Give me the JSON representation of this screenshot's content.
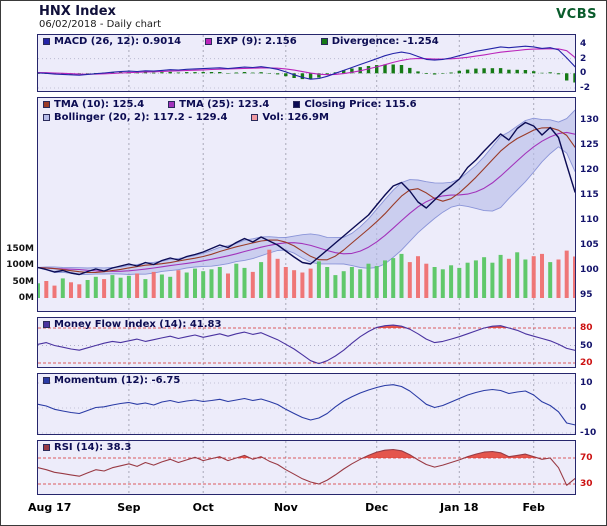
{
  "header": {
    "title": "HNX Index",
    "subtitle": "06/02/2018 - Daily chart",
    "brand": "VCBS"
  },
  "colors": {
    "panel_bg": "#edecfa",
    "grid": "#a9a9b9",
    "band_fill": "#b6bce9",
    "band_edge": "#8a94d8",
    "close_line": "#0b0b54",
    "tma10_line": "#9a3b28",
    "tma25_line": "#a233bb",
    "macd_line": "#2424a8",
    "exp_line": "#ba25ba",
    "divergence_bar": "#167a16",
    "mfi_line": "#4a33a0",
    "momentum_line": "#2a3ba5",
    "rsi_line": "#993a44",
    "vol_up": "#58c663",
    "vol_down": "#ef7070",
    "threshold_red": "#d42a2a",
    "overbought_fill": "#e23b2e",
    "tick_text": "#12126a",
    "tick_red": "#cc1111"
  },
  "legends": {
    "macd": [
      {
        "label": "MACD (26, 12): 0.9014",
        "color": "#2424a8"
      },
      {
        "label": "EXP (9): 2.156",
        "color": "#ba25ba"
      },
      {
        "label": "Divergence: -1.254",
        "color": "#167a16"
      }
    ],
    "price_row1": [
      {
        "label": "TMA (10): 125.4",
        "color": "#9a3b28"
      },
      {
        "label": "TMA (25): 123.4",
        "color": "#a233bb"
      },
      {
        "label": "Closing Price: 115.6",
        "color": "#0b0b54"
      }
    ],
    "price_row2": [
      {
        "label": "Bollinger (20, 2): 117.2 - 129.4",
        "color": "#b6bce9"
      },
      {
        "label": "Vol: 126.9M",
        "color": "#ef9aa2"
      }
    ],
    "mfi": [
      {
        "label": "Money Flow Index (14): 41.83",
        "color": "#4a33a0"
      }
    ],
    "momentum": [
      {
        "label": "Momentum (12): -6.75",
        "color": "#2a3ba5"
      }
    ],
    "rsi": [
      {
        "label": "RSI (14): 38.3",
        "color": "#993a44"
      }
    ]
  },
  "chart_data": {
    "type": "line",
    "title": "HNX Index",
    "subtitle": "06/02/2018 - Daily chart",
    "panels": [
      "MACD",
      "Price with Bollinger bands and volume",
      "Money Flow Index",
      "Momentum",
      "RSI"
    ],
    "n": 66,
    "x_ticks": {
      "labels": [
        "Aug 17",
        "Sep",
        "Oct",
        "Nov",
        "Dec",
        "Jan 18",
        "Feb"
      ],
      "indices": [
        0,
        11,
        20,
        30,
        41,
        51,
        60
      ]
    },
    "y_axes": {
      "macd_ticks": [
        4,
        2,
        0,
        -2
      ],
      "macd_range": [
        -2.55,
        5.23
      ],
      "price_ticks": [
        130,
        125,
        120,
        115,
        110,
        105,
        100,
        95
      ],
      "price_range": [
        91.8,
        134.4
      ],
      "volume_ticks": [
        "150M",
        "100M",
        "50M",
        "0M"
      ],
      "volume_range_millions": [
        0,
        150
      ],
      "mfi_ticks": [
        80,
        50,
        20
      ],
      "mfi_thresholds": [
        80,
        20
      ],
      "momentum_ticks": [
        10,
        0,
        -10
      ],
      "rsi_ticks": [
        70,
        30
      ],
      "rsi_thresholds": [
        70,
        30
      ]
    },
    "last_values": {
      "macd": 0.9014,
      "exp9": 2.156,
      "divergence": -1.254,
      "tma10": 125.4,
      "tma25": 123.4,
      "close": 115.6,
      "bollinger": "117.2 - 129.4",
      "volume": "126.9M",
      "mfi": 41.83,
      "momentum": -6.75,
      "rsi": 38.3
    },
    "series": {
      "close": [
        100.5,
        100.1,
        99.6,
        99.9,
        99.4,
        99.1,
        99.7,
        100.2,
        99.8,
        100.4,
        100.8,
        101.2,
        100.8,
        101.5,
        101.1,
        101.9,
        102.4,
        102.0,
        102.7,
        103.1,
        103.6,
        104.3,
        105.0,
        104.5,
        105.5,
        106.3,
        105.6,
        106.6,
        105.8,
        105.0,
        103.8,
        102.6,
        101.5,
        101.2,
        102.6,
        104.0,
        105.4,
        106.8,
        108.2,
        109.6,
        111.0,
        113.0,
        115.0,
        116.8,
        117.5,
        115.8,
        113.6,
        112.4,
        114.0,
        115.6,
        116.8,
        118.2,
        120.5,
        122.0,
        123.8,
        125.5,
        127.2,
        126.0,
        128.3,
        129.5,
        128.8,
        127.0,
        128.5,
        126.5,
        121.0,
        115.6
      ],
      "volume_millions": [
        45,
        52,
        38,
        60,
        48,
        42,
        55,
        65,
        58,
        70,
        62,
        68,
        75,
        58,
        80,
        72,
        65,
        85,
        78,
        90,
        82,
        88,
        95,
        75,
        105,
        92,
        80,
        110,
        148,
        120,
        95,
        85,
        78,
        90,
        112,
        95,
        70,
        82,
        95,
        88,
        105,
        98,
        115,
        122,
        135,
        110,
        128,
        105,
        95,
        88,
        100,
        92,
        108,
        115,
        125,
        108,
        132,
        120,
        140,
        118,
        128,
        135,
        110,
        118,
        145,
        126.9
      ],
      "macd": [
        0.05,
        0.0,
        -0.1,
        -0.15,
        -0.2,
        -0.25,
        -0.15,
        -0.05,
        0.05,
        0.15,
        0.25,
        0.3,
        0.25,
        0.35,
        0.3,
        0.4,
        0.5,
        0.45,
        0.55,
        0.6,
        0.65,
        0.7,
        0.75,
        0.65,
        0.75,
        0.85,
        0.8,
        0.9,
        0.75,
        0.55,
        0.2,
        -0.2,
        -0.55,
        -0.8,
        -0.7,
        -0.4,
        0.0,
        0.4,
        0.8,
        1.2,
        1.6,
        2.0,
        2.4,
        2.7,
        2.9,
        2.7,
        2.3,
        1.9,
        1.8,
        1.9,
        2.1,
        2.4,
        2.7,
        3.0,
        3.2,
        3.4,
        3.6,
        3.5,
        3.6,
        3.7,
        3.6,
        3.4,
        3.5,
        3.2,
        2.1,
        0.9
      ],
      "macd_signal": [
        0.1,
        0.08,
        0.04,
        0.0,
        -0.05,
        -0.1,
        -0.12,
        -0.1,
        -0.07,
        -0.02,
        0.04,
        0.1,
        0.14,
        0.18,
        0.21,
        0.25,
        0.3,
        0.34,
        0.38,
        0.43,
        0.47,
        0.52,
        0.57,
        0.6,
        0.63,
        0.67,
        0.7,
        0.74,
        0.74,
        0.7,
        0.6,
        0.44,
        0.24,
        0.03,
        -0.12,
        -0.18,
        -0.14,
        -0.03,
        0.14,
        0.35,
        0.6,
        0.88,
        1.18,
        1.49,
        1.77,
        1.96,
        2.03,
        2.0,
        1.96,
        1.95,
        1.98,
        2.06,
        2.19,
        2.35,
        2.52,
        2.7,
        2.88,
        3.0,
        3.12,
        3.24,
        3.31,
        3.33,
        3.36,
        3.33,
        3.08,
        2.16
      ],
      "money_flow_index": [
        52,
        55,
        50,
        47,
        44,
        42,
        46,
        50,
        54,
        57,
        55,
        58,
        61,
        57,
        60,
        63,
        66,
        62,
        65,
        68,
        64,
        67,
        70,
        66,
        70,
        73,
        69,
        72,
        66,
        60,
        52,
        44,
        34,
        24,
        19,
        24,
        32,
        42,
        54,
        65,
        74,
        81,
        84,
        85,
        83,
        78,
        70,
        61,
        55,
        57,
        61,
        65,
        70,
        75,
        80,
        83,
        84,
        80,
        76,
        70,
        66,
        62,
        58,
        52,
        45,
        41.83
      ],
      "momentum": [
        1.5,
        0.8,
        -0.5,
        -1.2,
        -1.8,
        -2.2,
        -1.0,
        0.2,
        0.5,
        1.2,
        1.8,
        2.2,
        1.5,
        2.0,
        1.2,
        2.4,
        3.0,
        2.2,
        2.8,
        3.2,
        2.6,
        3.0,
        3.5,
        2.6,
        3.2,
        3.8,
        3.0,
        3.6,
        2.6,
        1.4,
        -0.5,
        -2.2,
        -3.8,
        -4.8,
        -4.0,
        -2.2,
        0.5,
        2.8,
        4.5,
        6.0,
        7.2,
        8.2,
        9.0,
        9.3,
        8.6,
        6.8,
        4.2,
        1.5,
        0.2,
        1.0,
        2.4,
        3.8,
        5.2,
        6.2,
        7.0,
        7.4,
        7.0,
        5.8,
        6.4,
        6.8,
        5.2,
        2.5,
        1.0,
        -1.5,
        -6.0,
        -6.75
      ],
      "rsi": [
        55,
        52,
        48,
        46,
        44,
        42,
        47,
        52,
        50,
        55,
        58,
        61,
        57,
        63,
        59,
        64,
        68,
        63,
        67,
        71,
        66,
        69,
        72,
        66,
        70,
        74,
        68,
        72,
        65,
        60,
        52,
        45,
        38,
        33,
        30,
        36,
        44,
        53,
        61,
        68,
        74,
        79,
        82,
        83,
        81,
        75,
        67,
        60,
        56,
        59,
        63,
        67,
        72,
        76,
        79,
        80,
        78,
        72,
        74,
        76,
        72,
        68,
        70,
        55,
        28,
        38.3
      ]
    }
  }
}
